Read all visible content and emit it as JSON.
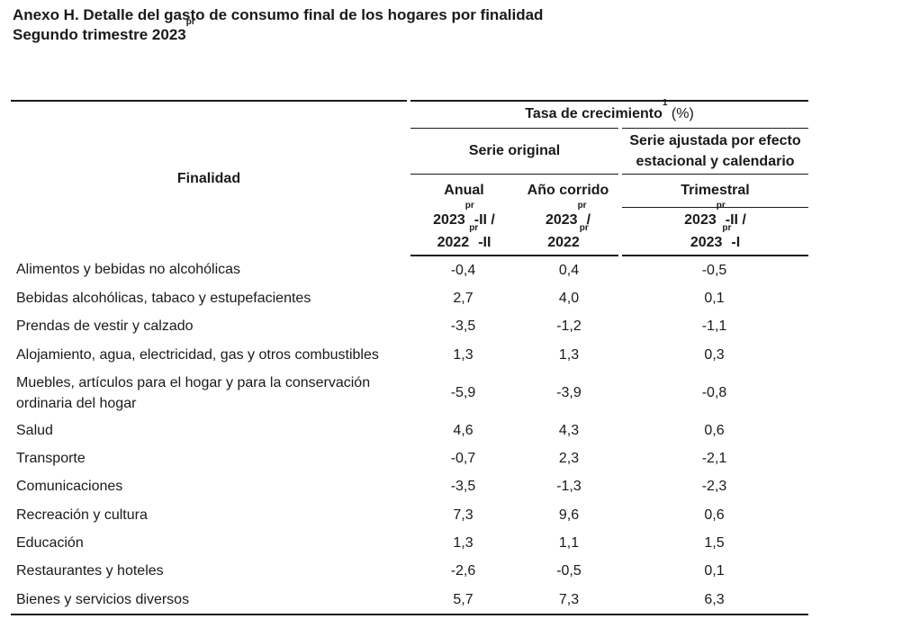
{
  "title": {
    "line1": "Anexo H. Detalle del gasto de consumo final de los hogares por finalidad",
    "line2_text": "Segundo trimestre 2023",
    "line2_sup": "pr"
  },
  "header": {
    "finalidad": "Finalidad",
    "tasa": "Tasa de crecimiento",
    "tasa_sup": "1",
    "tasa_unit": " (%)",
    "serie_original": "Serie original",
    "serie_ajustada_l1": "Serie ajustada por efecto",
    "serie_ajustada_l2": "estacional y calendario",
    "anual": "Anual",
    "ano_corrido": "Año corrido",
    "trimestral": "Trimestral",
    "p_anual_a": "2023",
    "p_anual_a_sup": "pr",
    "p_anual_a_tail": "-II /",
    "p_anual_b": "2022",
    "p_anual_b_sup": "pr",
    "p_anual_b_tail": "-II",
    "p_corr_a": "2023",
    "p_corr_a_sup": "pr",
    "p_corr_a_tail": "/",
    "p_corr_b": "2022",
    "p_corr_b_sup": "pr",
    "p_trim_a": "2023",
    "p_trim_a_sup": "pr",
    "p_trim_a_tail": "-II /",
    "p_trim_b": "2023",
    "p_trim_b_sup": "pr",
    "p_trim_b_tail": "-I"
  },
  "rows": [
    {
      "finalidad": "Alimentos y bebidas no alcohólicas",
      "anual": "-0,4",
      "corrido": "0,4",
      "trimestral": "-0,5"
    },
    {
      "finalidad": "Bebidas alcohólicas, tabaco y estupefacientes",
      "anual": "2,7",
      "corrido": "4,0",
      "trimestral": "0,1"
    },
    {
      "finalidad": "Prendas de vestir y calzado",
      "anual": "-3,5",
      "corrido": "-1,2",
      "trimestral": "-1,1"
    },
    {
      "finalidad": "Alojamiento, agua, electricidad, gas y otros combustibles",
      "anual": "1,3",
      "corrido": "1,3",
      "trimestral": "0,3"
    },
    {
      "finalidad_l1": "Muebles, artículos para el hogar y para la conservación",
      "finalidad_l2": "ordinaria del hogar",
      "anual": "-5,9",
      "corrido": "-3,9",
      "trimestral": "-0,8"
    },
    {
      "finalidad": "Salud",
      "anual": "4,6",
      "corrido": "4,3",
      "trimestral": "0,6"
    },
    {
      "finalidad": "Transporte",
      "anual": "-0,7",
      "corrido": "2,3",
      "trimestral": "-2,1"
    },
    {
      "finalidad": "Comunicaciones",
      "anual": "-3,5",
      "corrido": "-1,3",
      "trimestral": "-2,3"
    },
    {
      "finalidad": "Recreación y cultura",
      "anual": "7,3",
      "corrido": "9,6",
      "trimestral": "0,6"
    },
    {
      "finalidad": "Educación",
      "anual": "1,3",
      "corrido": "1,1",
      "trimestral": "1,5"
    },
    {
      "finalidad": "Restaurantes y hoteles",
      "anual": "-2,6",
      "corrido": "-0,5",
      "trimestral": "0,1"
    },
    {
      "finalidad": "Bienes y servicios diversos",
      "anual": "5,7",
      "corrido": "7,3",
      "trimestral": "6,3"
    }
  ]
}
